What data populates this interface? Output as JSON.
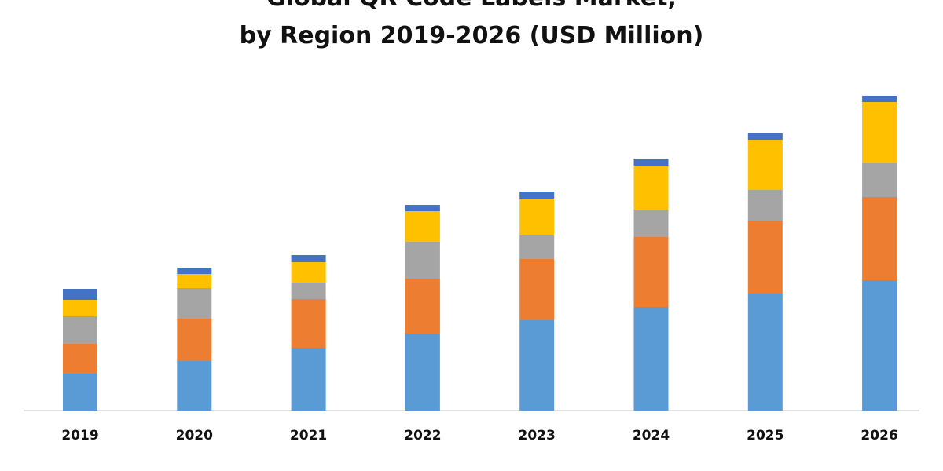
{
  "title_line1": "Global QR Code Labels Market,",
  "title_line2": "by Region 2019-2026 (USD Million)",
  "chart_data": {
    "type": "bar",
    "stacked": true,
    "categories": [
      "2019",
      "2020",
      "2021",
      "2022",
      "2023",
      "2024",
      "2025",
      "2026"
    ],
    "series": [
      {
        "color": "#5B9BD5",
        "values": [
          47,
          63,
          80,
          98,
          115,
          132,
          149,
          166
        ]
      },
      {
        "color": "#ED7D31",
        "values": [
          38,
          54,
          62,
          70,
          78,
          89,
          93,
          106
        ]
      },
      {
        "color": "#A5A5A5",
        "values": [
          35,
          39,
          21,
          47,
          30,
          35,
          39,
          43
        ]
      },
      {
        "color": "#FFC000",
        "values": [
          21,
          18,
          26,
          39,
          47,
          56,
          64,
          78
        ]
      },
      {
        "color": "#4472C4",
        "values": [
          14,
          8,
          9,
          8,
          9,
          8,
          8,
          8
        ]
      }
    ],
    "ylim": [
      0,
      430
    ],
    "grid": false,
    "legend": "bottom"
  }
}
